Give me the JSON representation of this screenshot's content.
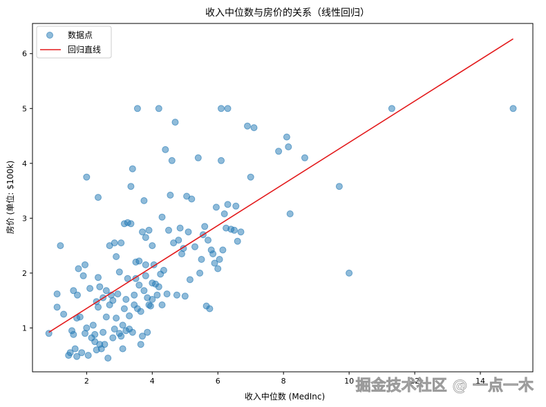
{
  "chart_data": {
    "type": "scatter",
    "title": "收入中位数与房价的关系（线性回归）",
    "xlabel": "收入中位数 (MedInc)",
    "ylabel": "房价 (单位: $100k)",
    "xlim": [
      0.35,
      15.6
    ],
    "ylim": [
      0.2,
      6.55
    ],
    "xticks": [
      2,
      4,
      6,
      8,
      10,
      12,
      14
    ],
    "yticks": [
      1,
      2,
      3,
      4,
      5,
      6
    ],
    "grid": false,
    "legend_position": "top-left",
    "colors": {
      "points": "#1f77b4",
      "line": "#e31a1c"
    },
    "series": [
      {
        "name": "数据点",
        "kind": "scatter",
        "points": [
          [
            0.85,
            0.9
          ],
          [
            1.1,
            1.62
          ],
          [
            1.1,
            1.38
          ],
          [
            1.2,
            2.5
          ],
          [
            1.3,
            1.25
          ],
          [
            1.45,
            0.5
          ],
          [
            1.5,
            0.55
          ],
          [
            1.55,
            0.95
          ],
          [
            1.6,
            1.68
          ],
          [
            1.6,
            0.88
          ],
          [
            1.65,
            0.62
          ],
          [
            1.7,
            0.48
          ],
          [
            1.7,
            1.18
          ],
          [
            1.72,
            1.6
          ],
          [
            1.75,
            2.08
          ],
          [
            1.8,
            1.2
          ],
          [
            1.85,
            0.55
          ],
          [
            1.9,
            1.95
          ],
          [
            1.95,
            2.15
          ],
          [
            1.95,
            0.9
          ],
          [
            2.0,
            1.0
          ],
          [
            2.0,
            3.75
          ],
          [
            2.05,
            0.5
          ],
          [
            2.1,
            1.72
          ],
          [
            2.15,
            0.82
          ],
          [
            2.2,
            1.05
          ],
          [
            2.25,
            0.75
          ],
          [
            2.25,
            0.88
          ],
          [
            2.3,
            1.48
          ],
          [
            2.3,
            0.6
          ],
          [
            2.35,
            1.92
          ],
          [
            2.35,
            1.38
          ],
          [
            2.4,
            0.7
          ],
          [
            2.4,
            1.75
          ],
          [
            2.45,
            0.62
          ],
          [
            2.5,
            0.92
          ],
          [
            2.5,
            1.55
          ],
          [
            2.55,
            0.7
          ],
          [
            2.6,
            1.68
          ],
          [
            2.6,
            1.2
          ],
          [
            2.65,
            0.45
          ],
          [
            2.7,
            2.5
          ],
          [
            2.7,
            1.42
          ],
          [
            2.75,
            1.6
          ],
          [
            2.8,
            1.5
          ],
          [
            2.8,
            0.82
          ],
          [
            2.85,
            0.98
          ],
          [
            2.85,
            2.55
          ],
          [
            2.9,
            2.3
          ],
          [
            2.9,
            1.18
          ],
          [
            2.95,
            1.62
          ],
          [
            3.0,
            0.9
          ],
          [
            3.0,
            2.02
          ],
          [
            3.05,
            0.85
          ],
          [
            3.05,
            2.55
          ],
          [
            3.1,
            0.62
          ],
          [
            3.1,
            1.05
          ],
          [
            3.15,
            2.9
          ],
          [
            3.15,
            1.35
          ],
          [
            3.2,
            0.95
          ],
          [
            3.2,
            1.52
          ],
          [
            3.25,
            2.92
          ],
          [
            3.25,
            1.9
          ],
          [
            3.3,
            1.22
          ],
          [
            3.3,
            0.98
          ],
          [
            3.35,
            3.58
          ],
          [
            3.35,
            2.9
          ],
          [
            3.4,
            3.9
          ],
          [
            3.4,
            0.92
          ],
          [
            3.45,
            1.6
          ],
          [
            3.45,
            1.42
          ],
          [
            3.5,
            2.2
          ],
          [
            3.5,
            1.9
          ],
          [
            3.55,
            1.35
          ],
          [
            3.6,
            2.22
          ],
          [
            3.6,
            1.78
          ],
          [
            3.65,
            0.7
          ],
          [
            3.65,
            1.3
          ],
          [
            3.7,
            2.75
          ],
          [
            3.7,
            0.85
          ],
          [
            3.75,
            3.32
          ],
          [
            3.75,
            1.68
          ],
          [
            3.8,
            2.65
          ],
          [
            3.8,
            1.95
          ],
          [
            3.85,
            0.92
          ],
          [
            3.85,
            1.55
          ],
          [
            3.9,
            2.78
          ],
          [
            3.9,
            1.42
          ],
          [
            3.95,
            1.4
          ],
          [
            4.0,
            1.52
          ],
          [
            4.0,
            1.82
          ],
          [
            4.05,
            2.15
          ],
          [
            4.1,
            1.8
          ],
          [
            4.15,
            1.6
          ],
          [
            4.2,
            1.75
          ],
          [
            4.25,
            1.98
          ],
          [
            4.3,
            3.02
          ],
          [
            4.3,
            1.42
          ],
          [
            4.35,
            2.05
          ],
          [
            4.4,
            4.25
          ],
          [
            4.45,
            1.62
          ],
          [
            4.5,
            2.78
          ],
          [
            4.55,
            3.42
          ],
          [
            4.6,
            4.05
          ],
          [
            4.65,
            2.55
          ],
          [
            4.7,
            4.75
          ],
          [
            4.75,
            1.6
          ],
          [
            4.8,
            2.6
          ],
          [
            4.85,
            2.82
          ],
          [
            4.9,
            2.35
          ],
          [
            4.95,
            2.45
          ],
          [
            5.0,
            1.58
          ],
          [
            5.05,
            3.4
          ],
          [
            5.1,
            2.75
          ],
          [
            5.15,
            1.88
          ],
          [
            5.2,
            3.35
          ],
          [
            5.3,
            2.48
          ],
          [
            5.4,
            4.1
          ],
          [
            5.45,
            2.0
          ],
          [
            5.5,
            2.25
          ],
          [
            5.55,
            2.7
          ],
          [
            5.6,
            2.85
          ],
          [
            5.65,
            1.4
          ],
          [
            5.7,
            2.6
          ],
          [
            5.75,
            1.35
          ],
          [
            5.8,
            2.42
          ],
          [
            5.85,
            2.35
          ],
          [
            5.9,
            2.18
          ],
          [
            5.95,
            3.2
          ],
          [
            6.0,
            2.08
          ],
          [
            6.05,
            2.25
          ],
          [
            6.1,
            4.05
          ],
          [
            6.15,
            2.42
          ],
          [
            6.2,
            3.08
          ],
          [
            6.25,
            2.82
          ],
          [
            6.3,
            3.25
          ],
          [
            6.4,
            2.8
          ],
          [
            6.5,
            2.78
          ],
          [
            6.55,
            3.22
          ],
          [
            6.6,
            2.58
          ],
          [
            6.7,
            2.75
          ],
          [
            6.9,
            4.68
          ],
          [
            7.0,
            3.75
          ],
          [
            7.1,
            4.65
          ],
          [
            7.85,
            4.22
          ],
          [
            8.1,
            4.48
          ],
          [
            8.15,
            4.3
          ],
          [
            8.2,
            3.08
          ],
          [
            8.65,
            4.1
          ],
          [
            9.7,
            3.58
          ],
          [
            10.0,
            2.0
          ],
          [
            11.3,
            5.0
          ],
          [
            15.0,
            5.0
          ],
          [
            3.55,
            5.0
          ],
          [
            4.2,
            5.0
          ],
          [
            6.1,
            5.0
          ],
          [
            6.3,
            5.0
          ],
          [
            2.35,
            3.38
          ],
          [
            3.8,
            2.15
          ],
          [
            4.0,
            2.5
          ]
        ]
      },
      {
        "name": "回归直线",
        "kind": "line",
        "x": [
          0.85,
          15.0
        ],
        "y": [
          0.92,
          6.27
        ]
      }
    ]
  },
  "watermark": "掘金技术社区 @ 一点一木"
}
